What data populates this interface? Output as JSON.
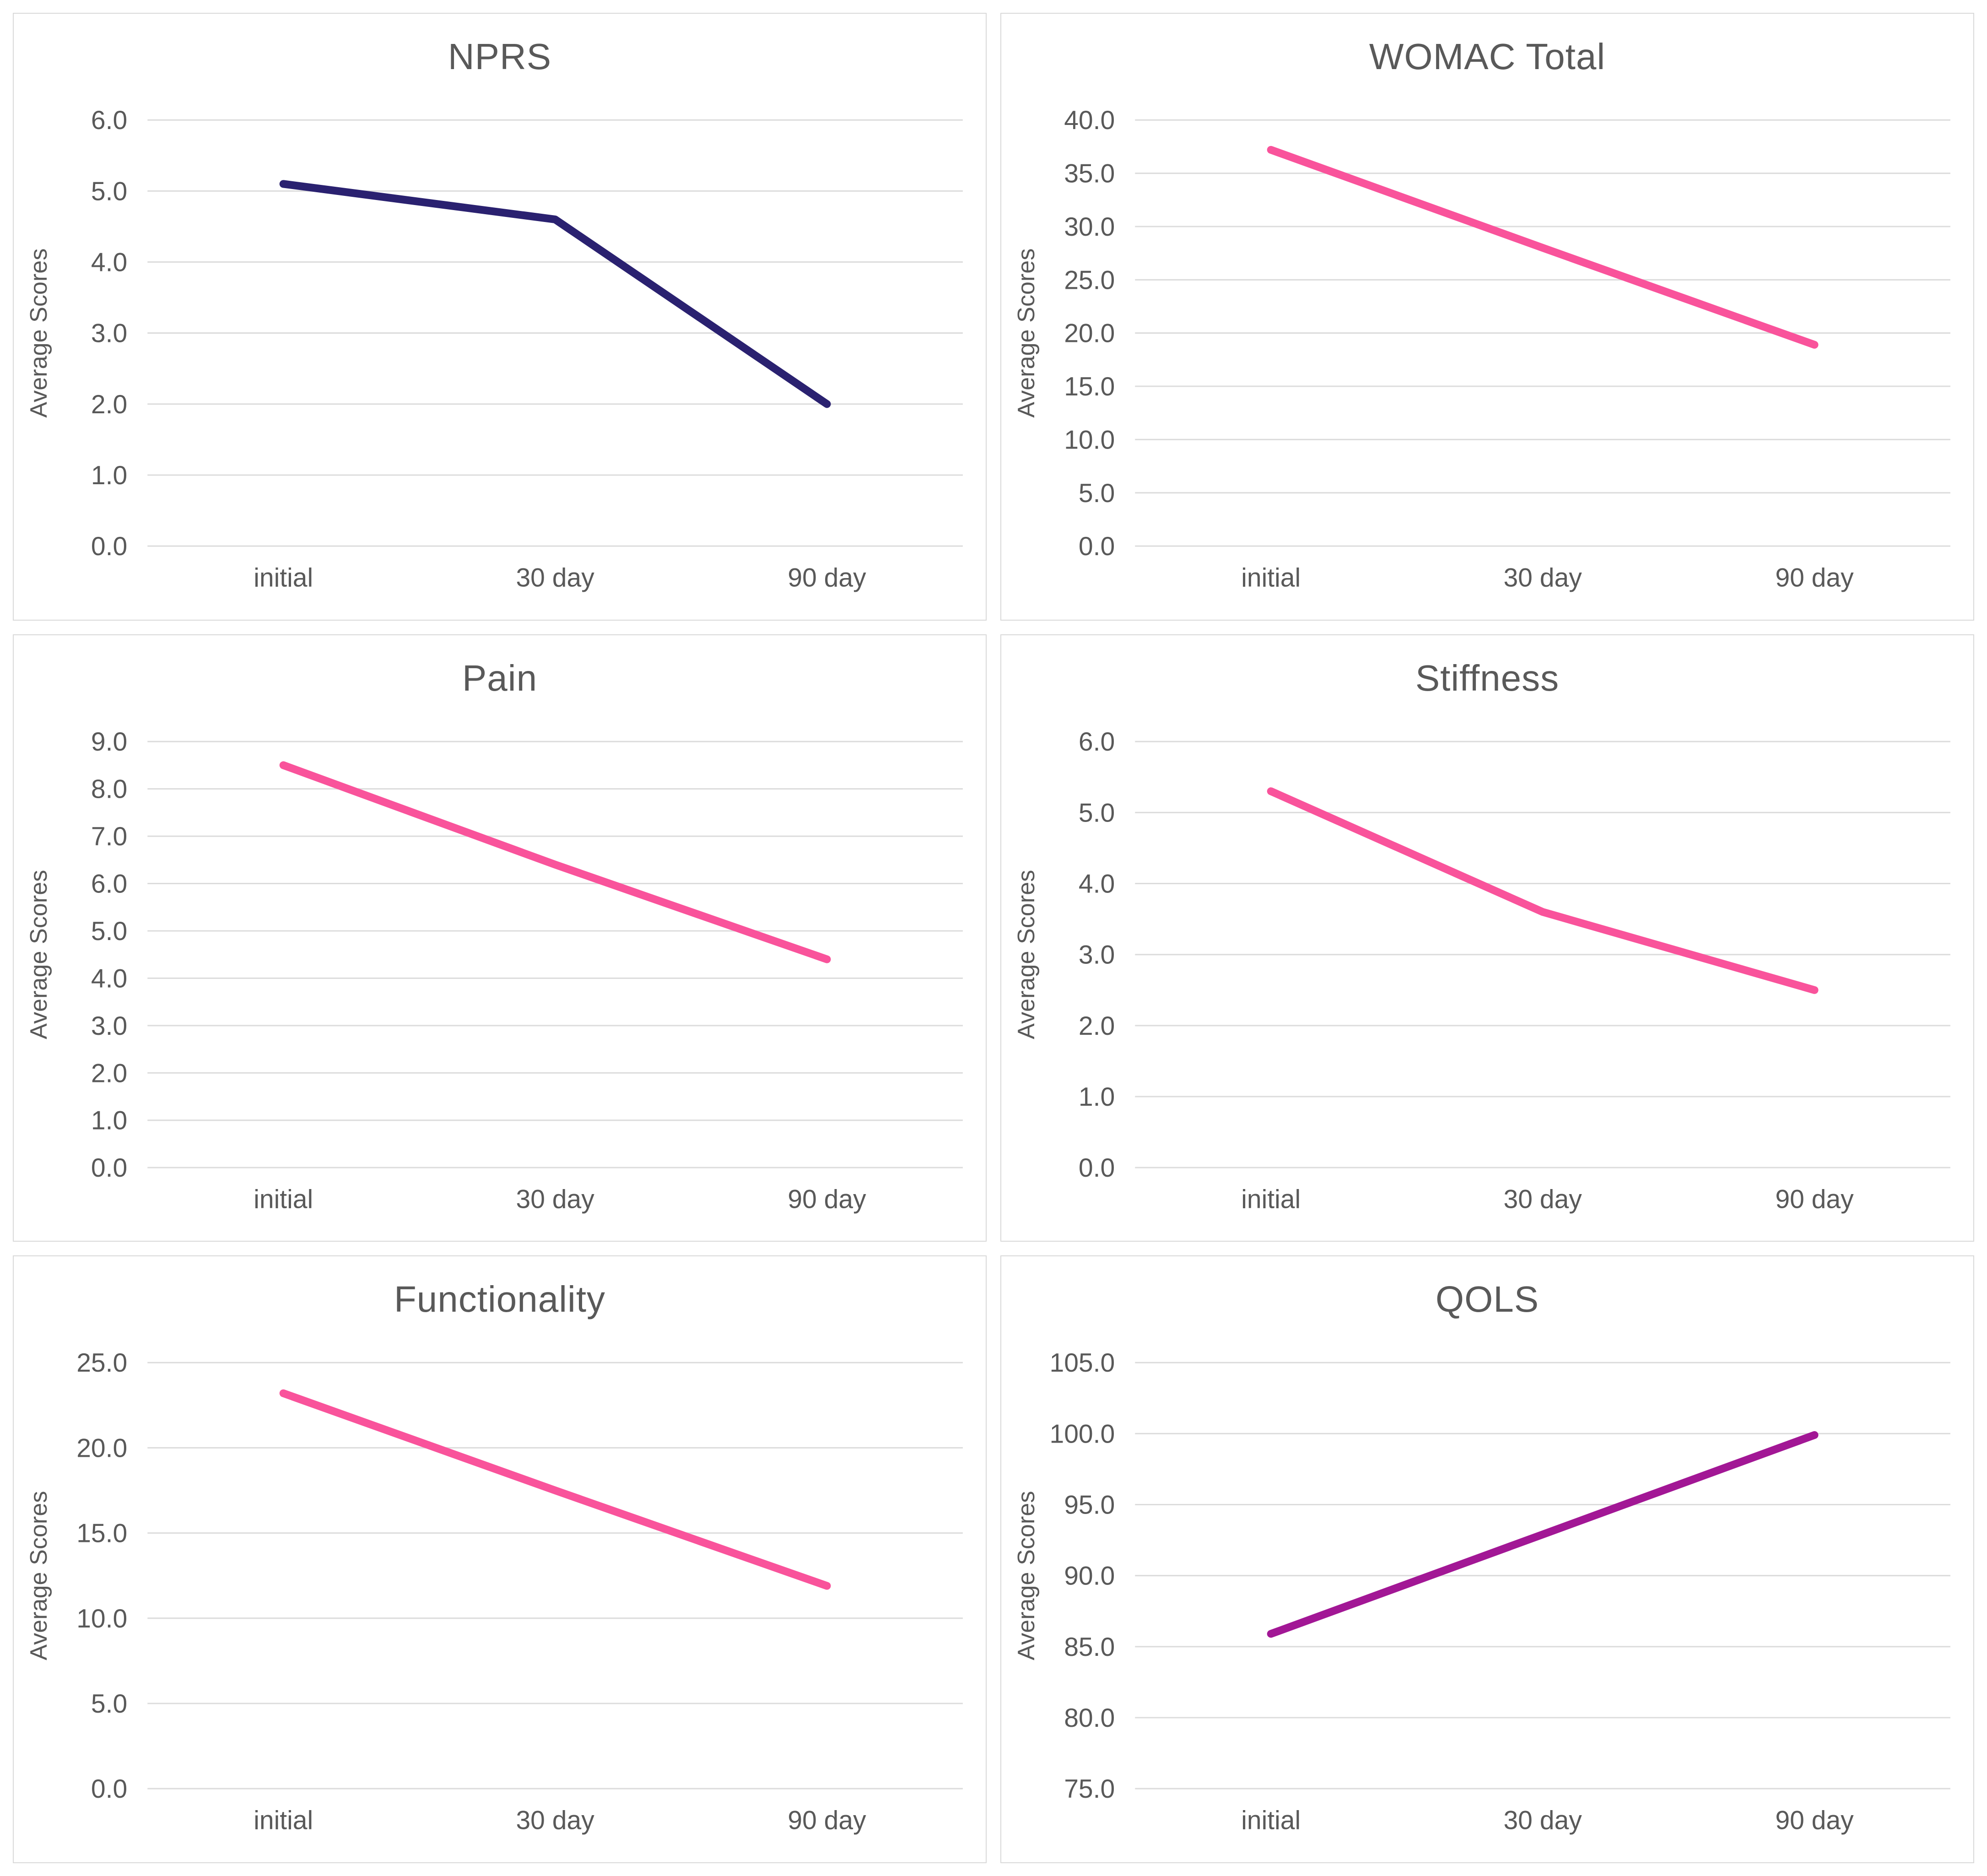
{
  "styles": {
    "background": "#FFFFFF",
    "panel_border": "#D9D9D9",
    "grid_color": "#DCDCDC",
    "text_color": "#595959",
    "pink": "#F9539B",
    "navy": "#2A2170",
    "purple": "#A21795"
  },
  "chart_data": [
    {
      "type": "line",
      "title": "NPRS",
      "ylabel": "Average Scores",
      "xlabel": "",
      "categories": [
        "initial",
        "30 day",
        "90 day"
      ],
      "values": [
        5.1,
        4.6,
        2.0
      ],
      "ylim": [
        0,
        6
      ],
      "ytick_step": 1,
      "tick_decimals": 1,
      "line_color": "#2A2170",
      "grid": true,
      "legend": "none"
    },
    {
      "type": "line",
      "title": "WOMAC Total",
      "ylabel": "Average Scores",
      "xlabel": "",
      "categories": [
        "initial",
        "30 day",
        "90 day"
      ],
      "values": [
        37.2,
        28.0,
        18.9
      ],
      "ylim": [
        0,
        40
      ],
      "ytick_step": 5,
      "tick_decimals": 1,
      "line_color": "#F9539B",
      "grid": true,
      "legend": "none"
    },
    {
      "type": "line",
      "title": "Pain",
      "ylabel": "Average Scores",
      "xlabel": "",
      "categories": [
        "initial",
        "30 day",
        "90 day"
      ],
      "values": [
        8.5,
        6.4,
        4.4
      ],
      "ylim": [
        0,
        9
      ],
      "ytick_step": 1,
      "tick_decimals": 1,
      "line_color": "#F9539B",
      "grid": true,
      "legend": "none"
    },
    {
      "type": "line",
      "title": "Stiffness",
      "ylabel": "Average Scores",
      "xlabel": "",
      "categories": [
        "initial",
        "30 day",
        "90 day"
      ],
      "values": [
        5.3,
        3.6,
        2.5
      ],
      "ylim": [
        0,
        6
      ],
      "ytick_step": 1,
      "tick_decimals": 1,
      "line_color": "#F9539B",
      "grid": true,
      "legend": "none"
    },
    {
      "type": "line",
      "title": "Functionality",
      "ylabel": "Average Scores",
      "xlabel": "",
      "categories": [
        "initial",
        "30 day",
        "90 day"
      ],
      "values": [
        23.2,
        17.5,
        11.9
      ],
      "ylim": [
        0,
        25
      ],
      "ytick_step": 5,
      "tick_decimals": 1,
      "line_color": "#F9539B",
      "grid": true,
      "legend": "none"
    },
    {
      "type": "line",
      "title": "QOLS",
      "ylabel": "Average Scores",
      "xlabel": "",
      "categories": [
        "initial",
        "30 day",
        "90 day"
      ],
      "values": [
        85.9,
        92.9,
        99.9
      ],
      "ylim": [
        75,
        105
      ],
      "ytick_step": 5,
      "tick_decimals": 1,
      "line_color": "#A21795",
      "grid": true,
      "legend": "none"
    }
  ]
}
